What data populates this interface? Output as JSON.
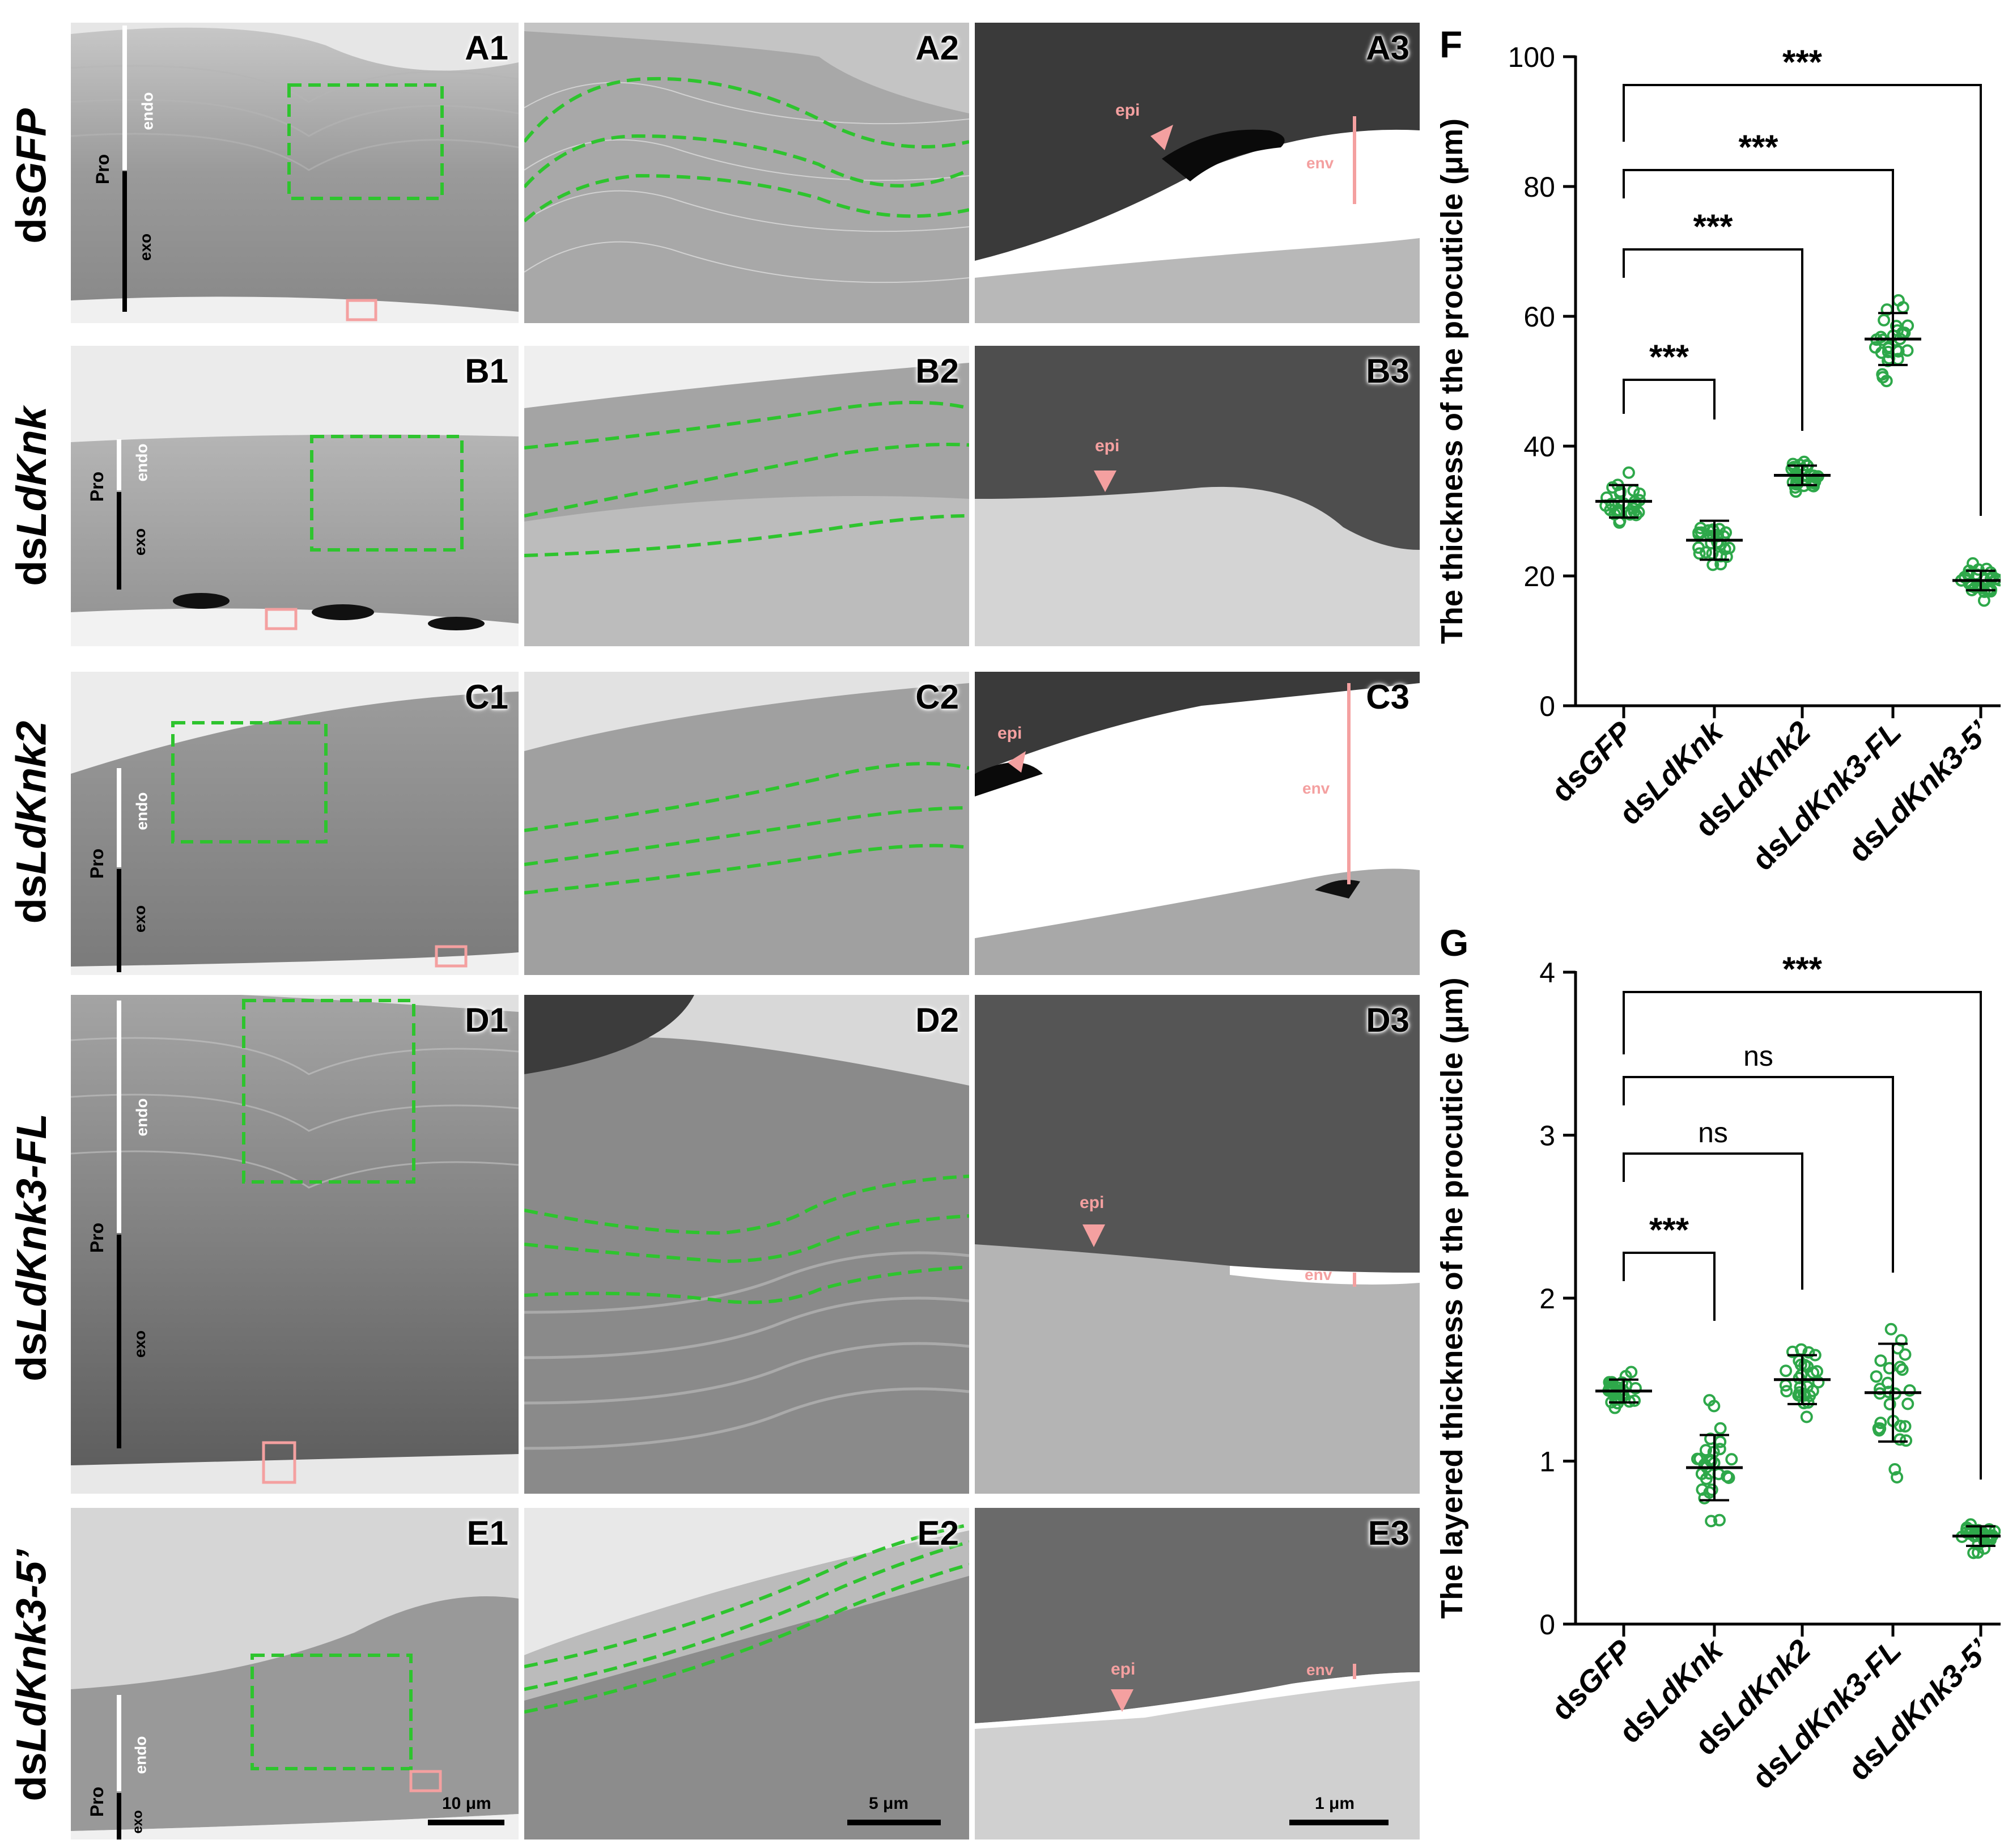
{
  "rows": [
    {
      "prefix": "ds",
      "name": "GFP",
      "letter": "A"
    },
    {
      "prefix": "ds",
      "name": "LdKnk",
      "letter": "B"
    },
    {
      "prefix": "ds",
      "name": "LdKnk2",
      "letter": "C"
    },
    {
      "prefix": "ds",
      "name": "LdKnk3-FL",
      "letter": "D"
    },
    {
      "prefix": "ds",
      "name": "LdKnk3-5’",
      "letter": "E"
    }
  ],
  "panel_labels": {
    "A1": "A1",
    "A2": "A2",
    "A3": "A3",
    "B1": "B1",
    "B2": "B2",
    "B3": "B3",
    "C1": "C1",
    "C2": "C2",
    "C3": "C3",
    "D1": "D1",
    "D2": "D2",
    "D3": "D3",
    "E1": "E1",
    "E2": "E2",
    "E3": "E3"
  },
  "micro_labels": {
    "endo": "endo",
    "exo": "exo",
    "pro": "Pro",
    "epi": "epi",
    "env": "env"
  },
  "scale_bars": {
    "col1": "10 μm",
    "col2": "5 μm",
    "col3": "1 μm"
  },
  "colors": {
    "dashed": "#2ec42e",
    "marker": "#f4a0a0",
    "points": "#2ea84a"
  },
  "chart_data": [
    {
      "panel": "F",
      "type": "scatter",
      "ylabel": "The thickness of the procuticle (μm)",
      "categories": [
        "dsGFP",
        "dsLdKnk",
        "dsLdKnk2",
        "dsLdKnk3-FL",
        "dsLdKnk3-5’"
      ],
      "category_italic": [
        "GFP",
        "LdKnk",
        "LdKnk2",
        "LdKnk3-FL",
        "LdKnk3-5’"
      ],
      "ylim": [
        0,
        100
      ],
      "yticks": [
        "0",
        "20",
        "40",
        "60",
        "80",
        "100"
      ],
      "mean": [
        31.5,
        25.5,
        35.5,
        56.5,
        19.3
      ],
      "sd": [
        2.5,
        3.0,
        1.5,
        4.0,
        1.5
      ],
      "significance": [
        {
          "from": 0,
          "to": 1,
          "label": "***"
        },
        {
          "from": 0,
          "to": 2,
          "label": "***"
        },
        {
          "from": 0,
          "to": 3,
          "label": "***"
        },
        {
          "from": 0,
          "to": 4,
          "label": "***"
        }
      ]
    },
    {
      "panel": "G",
      "type": "scatter",
      "ylabel": "The layered thickness of the procuticle (μm)",
      "categories": [
        "dsGFP",
        "dsLdKnk",
        "dsLdKnk2",
        "dsLdKnk3-FL",
        "dsLdKnk3-5’"
      ],
      "category_italic": [
        "GFP",
        "LdKnk",
        "LdKnk2",
        "LdKnk3-FL",
        "LdKnk3-5’"
      ],
      "ylim": [
        0,
        4
      ],
      "yticks": [
        "0",
        "1",
        "2",
        "3",
        "4"
      ],
      "mean": [
        1.43,
        0.96,
        1.5,
        1.42,
        0.54
      ],
      "sd": [
        0.07,
        0.2,
        0.15,
        0.3,
        0.06
      ],
      "significance": [
        {
          "from": 0,
          "to": 1,
          "label": "***"
        },
        {
          "from": 0,
          "to": 2,
          "label": "ns"
        },
        {
          "from": 0,
          "to": 3,
          "label": "ns"
        },
        {
          "from": 0,
          "to": 4,
          "label": "***"
        }
      ]
    }
  ]
}
